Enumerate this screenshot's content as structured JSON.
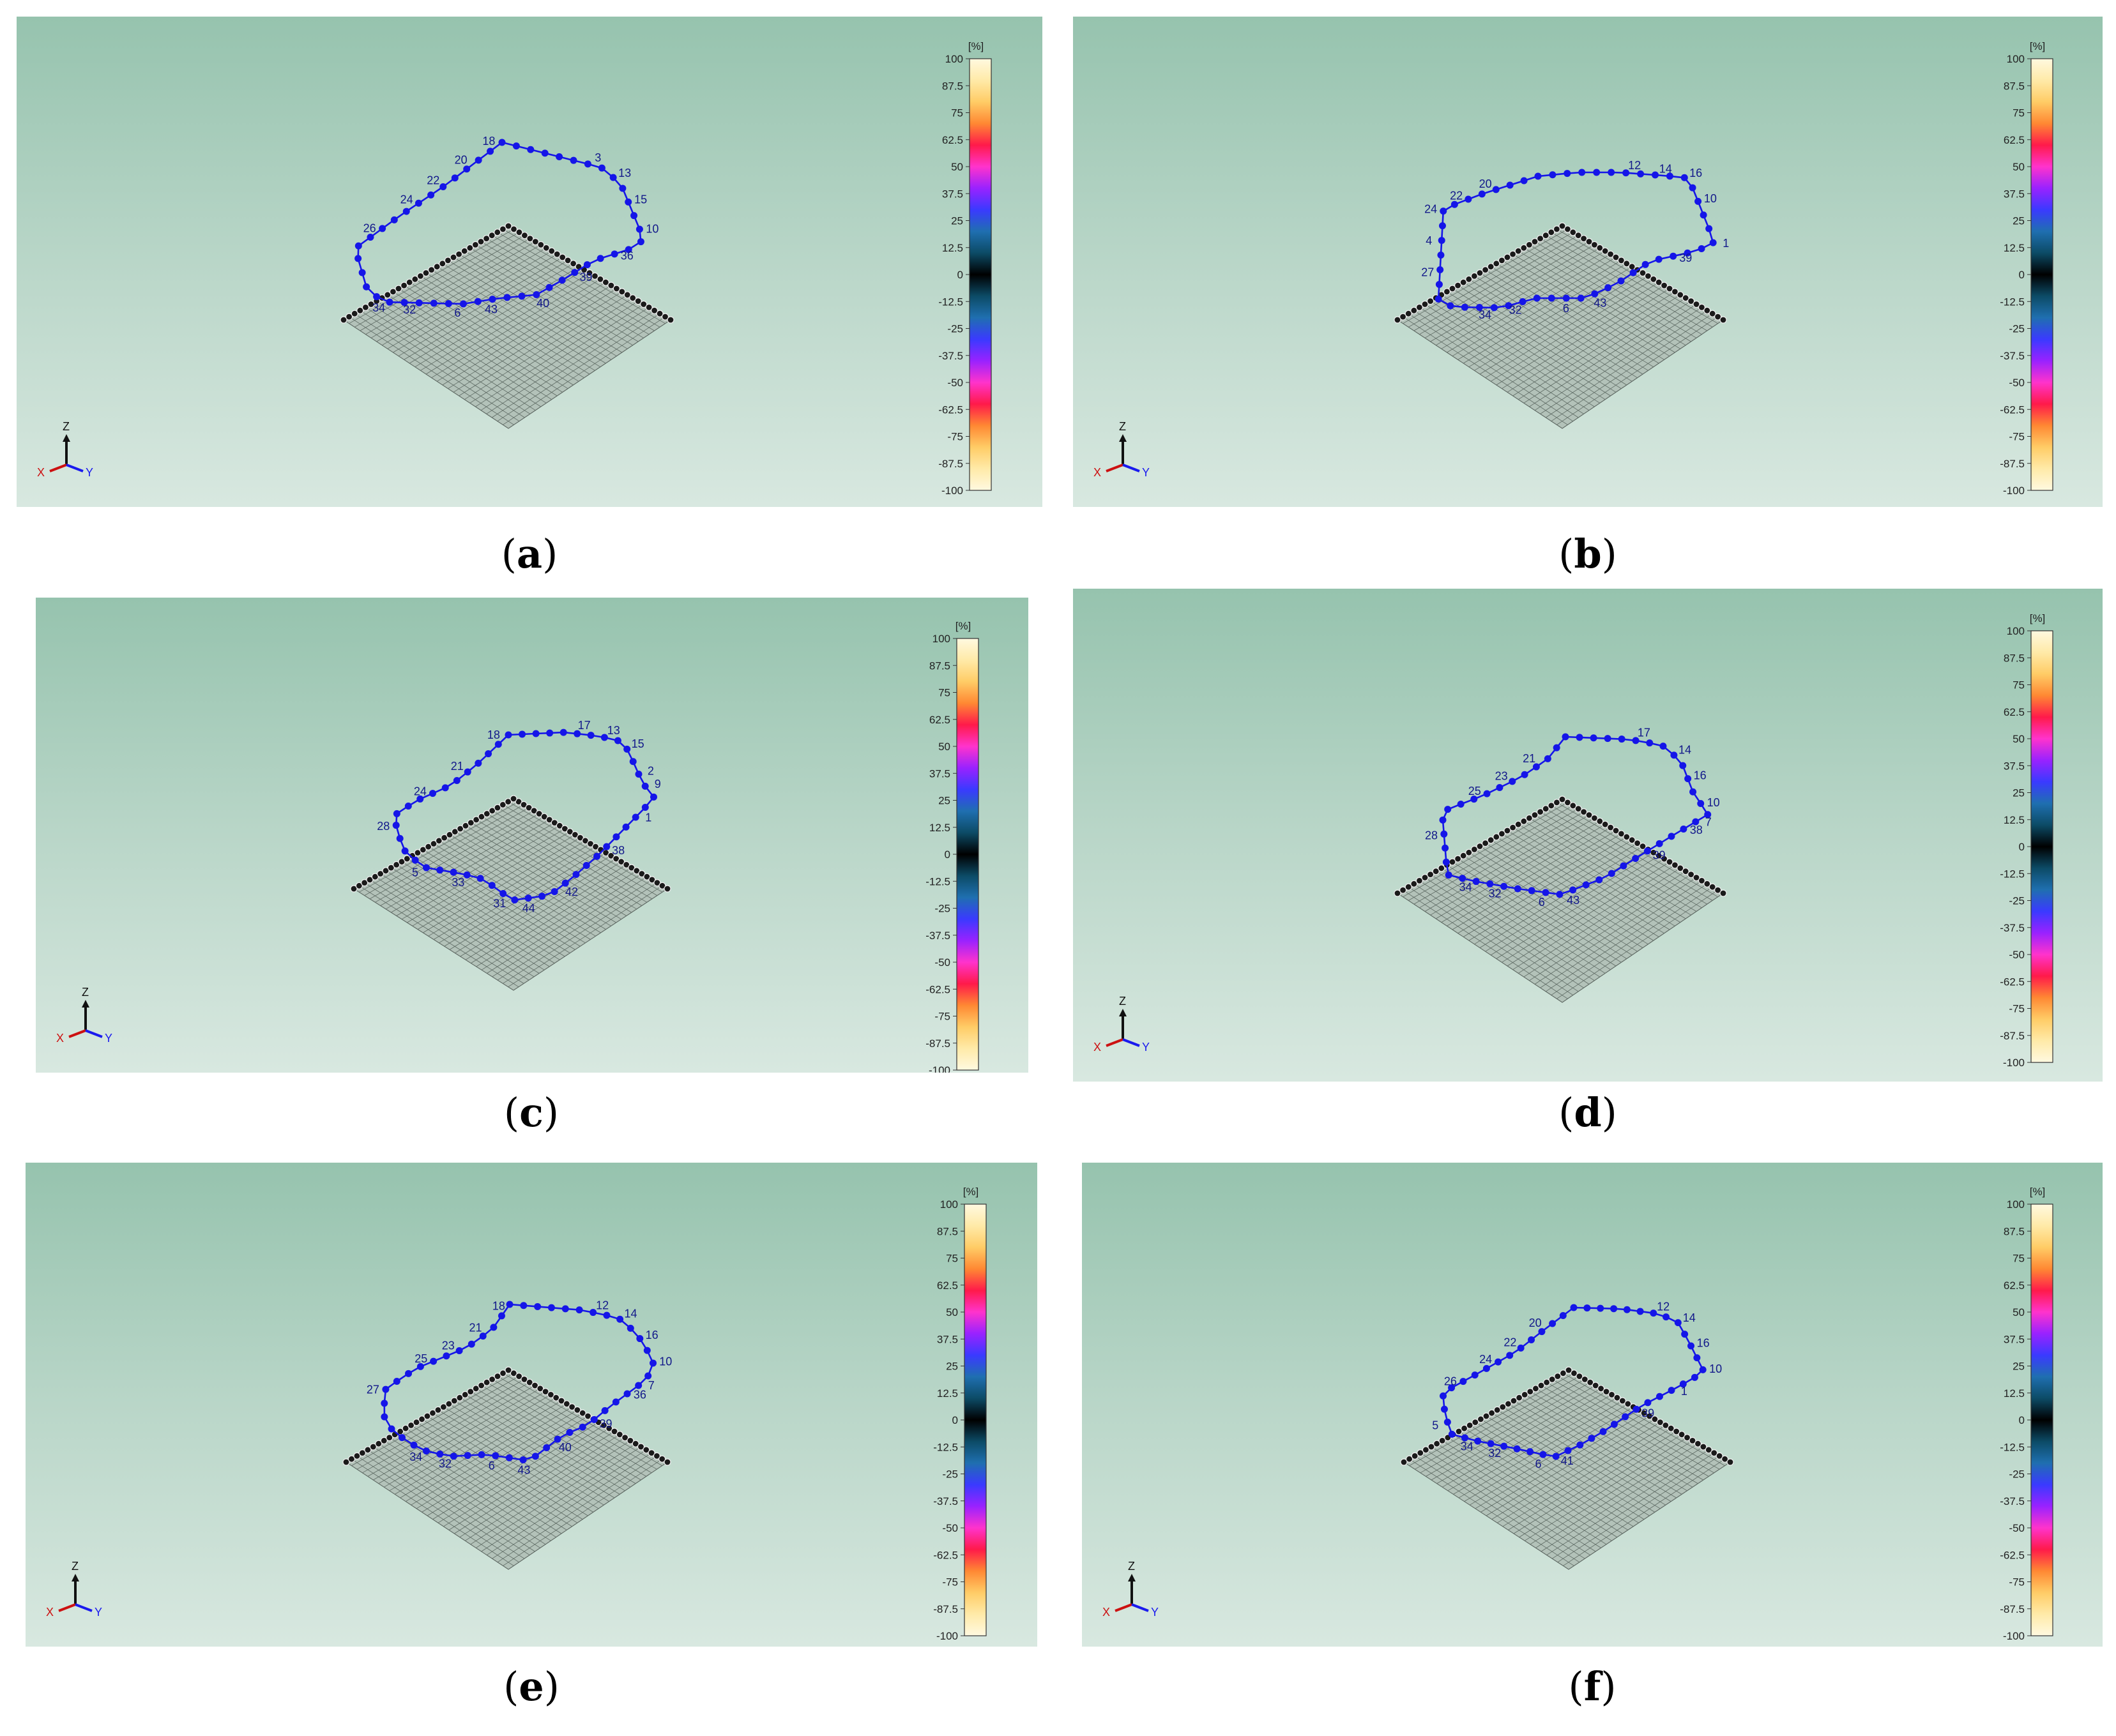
{
  "colorbar": {
    "unit": "[%]",
    "ticks": [
      "100",
      "87.5",
      "75",
      "62.5",
      "50",
      "37.5",
      "25",
      "12.5",
      "0",
      "-12.5",
      "-25",
      "-37.5",
      "-50",
      "-62.5",
      "-75",
      "-87.5",
      "-100"
    ],
    "colors_top_to_bottom": [
      "#fff9e0",
      "#ffeaa8",
      "#ffcc66",
      "#ff8833",
      "#ff1a4a",
      "#ff33cc",
      "#9922ff",
      "#3a3aff",
      "#1f6fb0",
      "#0c4b66",
      "#000000",
      "#0c4b66",
      "#1f6fb0",
      "#3a3aff",
      "#9922ff",
      "#ff33cc",
      "#ff1a4a",
      "#ff8833",
      "#ffcc66",
      "#ffeaa8",
      "#fff9e0"
    ]
  },
  "axis_triad": {
    "z": "Z",
    "x": "X",
    "y": "Y"
  },
  "trace_color": "#1515e8",
  "panels": [
    {
      "caption_letter": "a",
      "labels": [
        {
          "text": "3",
          "i": 6
        },
        {
          "text": "13",
          "i": 8
        },
        {
          "text": "15",
          "i": 10
        },
        {
          "text": "10",
          "i": 12
        },
        {
          "text": "36",
          "i": 15
        },
        {
          "text": "39",
          "i": 18
        },
        {
          "text": "40",
          "i": 21
        },
        {
          "text": "43",
          "i": 24
        },
        {
          "text": "6",
          "i": 26
        },
        {
          "text": "32",
          "i": 29
        },
        {
          "text": "34",
          "i": 31
        },
        {
          "text": "26",
          "i": 38
        },
        {
          "text": "24",
          "i": 41
        },
        {
          "text": "22",
          "i": 43
        },
        {
          "text": "20",
          "i": 45
        },
        {
          "text": "18",
          "i": 47
        }
      ]
    },
    {
      "caption_letter": "b",
      "labels": [
        {
          "text": "12",
          "i": 6
        },
        {
          "text": "14",
          "i": 8
        },
        {
          "text": "16",
          "i": 10
        },
        {
          "text": "10",
          "i": 12
        },
        {
          "text": "1",
          "i": 15
        },
        {
          "text": "39",
          "i": 18
        },
        {
          "text": "43",
          "i": 24
        },
        {
          "text": "6",
          "i": 26
        },
        {
          "text": "32",
          "i": 29
        },
        {
          "text": "34",
          "i": 31
        },
        {
          "text": "27",
          "i": 37
        },
        {
          "text": "4",
          "i": 39
        },
        {
          "text": "24",
          "i": 41
        },
        {
          "text": "22",
          "i": 43
        },
        {
          "text": "20",
          "i": 45
        }
      ]
    },
    {
      "caption_letter": "c",
      "labels": [
        {
          "text": "17",
          "i": 5
        },
        {
          "text": "13",
          "i": 7
        },
        {
          "text": "15",
          "i": 9
        },
        {
          "text": "2",
          "i": 11
        },
        {
          "text": "9",
          "i": 12
        },
        {
          "text": "1",
          "i": 15
        },
        {
          "text": "38",
          "i": 18
        },
        {
          "text": "42",
          "i": 22
        },
        {
          "text": "44",
          "i": 25
        },
        {
          "text": "31",
          "i": 27
        },
        {
          "text": "33",
          "i": 30
        },
        {
          "text": "5",
          "i": 33
        },
        {
          "text": "28",
          "i": 37
        },
        {
          "text": "24",
          "i": 41
        },
        {
          "text": "21",
          "i": 44
        },
        {
          "text": "18",
          "i": 47
        }
      ]
    },
    {
      "caption_letter": "d",
      "labels": [
        {
          "text": "17",
          "i": 5
        },
        {
          "text": "14",
          "i": 8
        },
        {
          "text": "16",
          "i": 10
        },
        {
          "text": "10",
          "i": 12
        },
        {
          "text": "7",
          "i": 14
        },
        {
          "text": "38",
          "i": 15
        },
        {
          "text": "39",
          "i": 18
        },
        {
          "text": "43",
          "i": 24
        },
        {
          "text": "6",
          "i": 26
        },
        {
          "text": "32",
          "i": 29
        },
        {
          "text": "34",
          "i": 31
        },
        {
          "text": "28",
          "i": 36
        },
        {
          "text": "25",
          "i": 41
        },
        {
          "text": "23",
          "i": 43
        },
        {
          "text": "21",
          "i": 45
        }
      ]
    },
    {
      "caption_letter": "e",
      "labels": [
        {
          "text": "12",
          "i": 6
        },
        {
          "text": "14",
          "i": 8
        },
        {
          "text": "16",
          "i": 10
        },
        {
          "text": "10",
          "i": 12
        },
        {
          "text": "7",
          "i": 14
        },
        {
          "text": "36",
          "i": 15
        },
        {
          "text": "39",
          "i": 18
        },
        {
          "text": "40",
          "i": 21
        },
        {
          "text": "43",
          "i": 24
        },
        {
          "text": "6",
          "i": 26
        },
        {
          "text": "32",
          "i": 29
        },
        {
          "text": "34",
          "i": 31
        },
        {
          "text": "27",
          "i": 37
        },
        {
          "text": "25",
          "i": 41
        },
        {
          "text": "23",
          "i": 43
        },
        {
          "text": "21",
          "i": 45
        },
        {
          "text": "18",
          "i": 47
        }
      ]
    },
    {
      "caption_letter": "f",
      "labels": [
        {
          "text": "12",
          "i": 6
        },
        {
          "text": "14",
          "i": 8
        },
        {
          "text": "16",
          "i": 10
        },
        {
          "text": "10",
          "i": 12
        },
        {
          "text": "1",
          "i": 15
        },
        {
          "text": "39",
          "i": 18
        },
        {
          "text": "41",
          "i": 24
        },
        {
          "text": "6",
          "i": 26
        },
        {
          "text": "32",
          "i": 29
        },
        {
          "text": "34",
          "i": 31
        },
        {
          "text": "5",
          "i": 34
        },
        {
          "text": "26",
          "i": 38
        },
        {
          "text": "24",
          "i": 41
        },
        {
          "text": "22",
          "i": 43
        },
        {
          "text": "20",
          "i": 45
        }
      ]
    }
  ]
}
